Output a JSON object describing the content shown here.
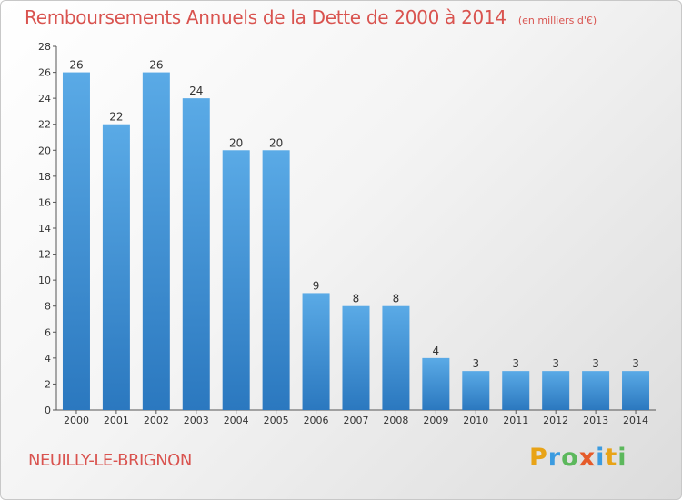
{
  "title": "Remboursements Annuels de la Dette de 2000 à 2014",
  "unit": "(en milliers d'€)",
  "commune": "NEUILLY-LE-BRIGNON",
  "brand": {
    "letters": [
      "P",
      "r",
      "o",
      "x",
      "i",
      "t",
      "i"
    ],
    "colors": [
      "#e8a317",
      "#3b9be0",
      "#5cb85c",
      "#e55b2a",
      "#3b9be0",
      "#e8a317",
      "#5cb85c"
    ]
  },
  "colors": {
    "bar_top": "#5aaae6",
    "bar_bottom": "#2b78bf",
    "title": "#d9534f"
  },
  "chart_data": {
    "type": "bar",
    "categories": [
      "2000",
      "2001",
      "2002",
      "2003",
      "2004",
      "2005",
      "2006",
      "2007",
      "2008",
      "2009",
      "2010",
      "2011",
      "2012",
      "2013",
      "2014"
    ],
    "values": [
      26,
      22,
      26,
      24,
      20,
      20,
      9,
      8,
      8,
      4,
      3,
      3,
      3,
      3,
      3
    ],
    "ylim": [
      0,
      28
    ],
    "yticks": [
      0,
      2,
      4,
      6,
      8,
      10,
      12,
      14,
      16,
      18,
      20,
      22,
      24,
      26,
      28
    ],
    "grid": false,
    "legend": "none"
  }
}
